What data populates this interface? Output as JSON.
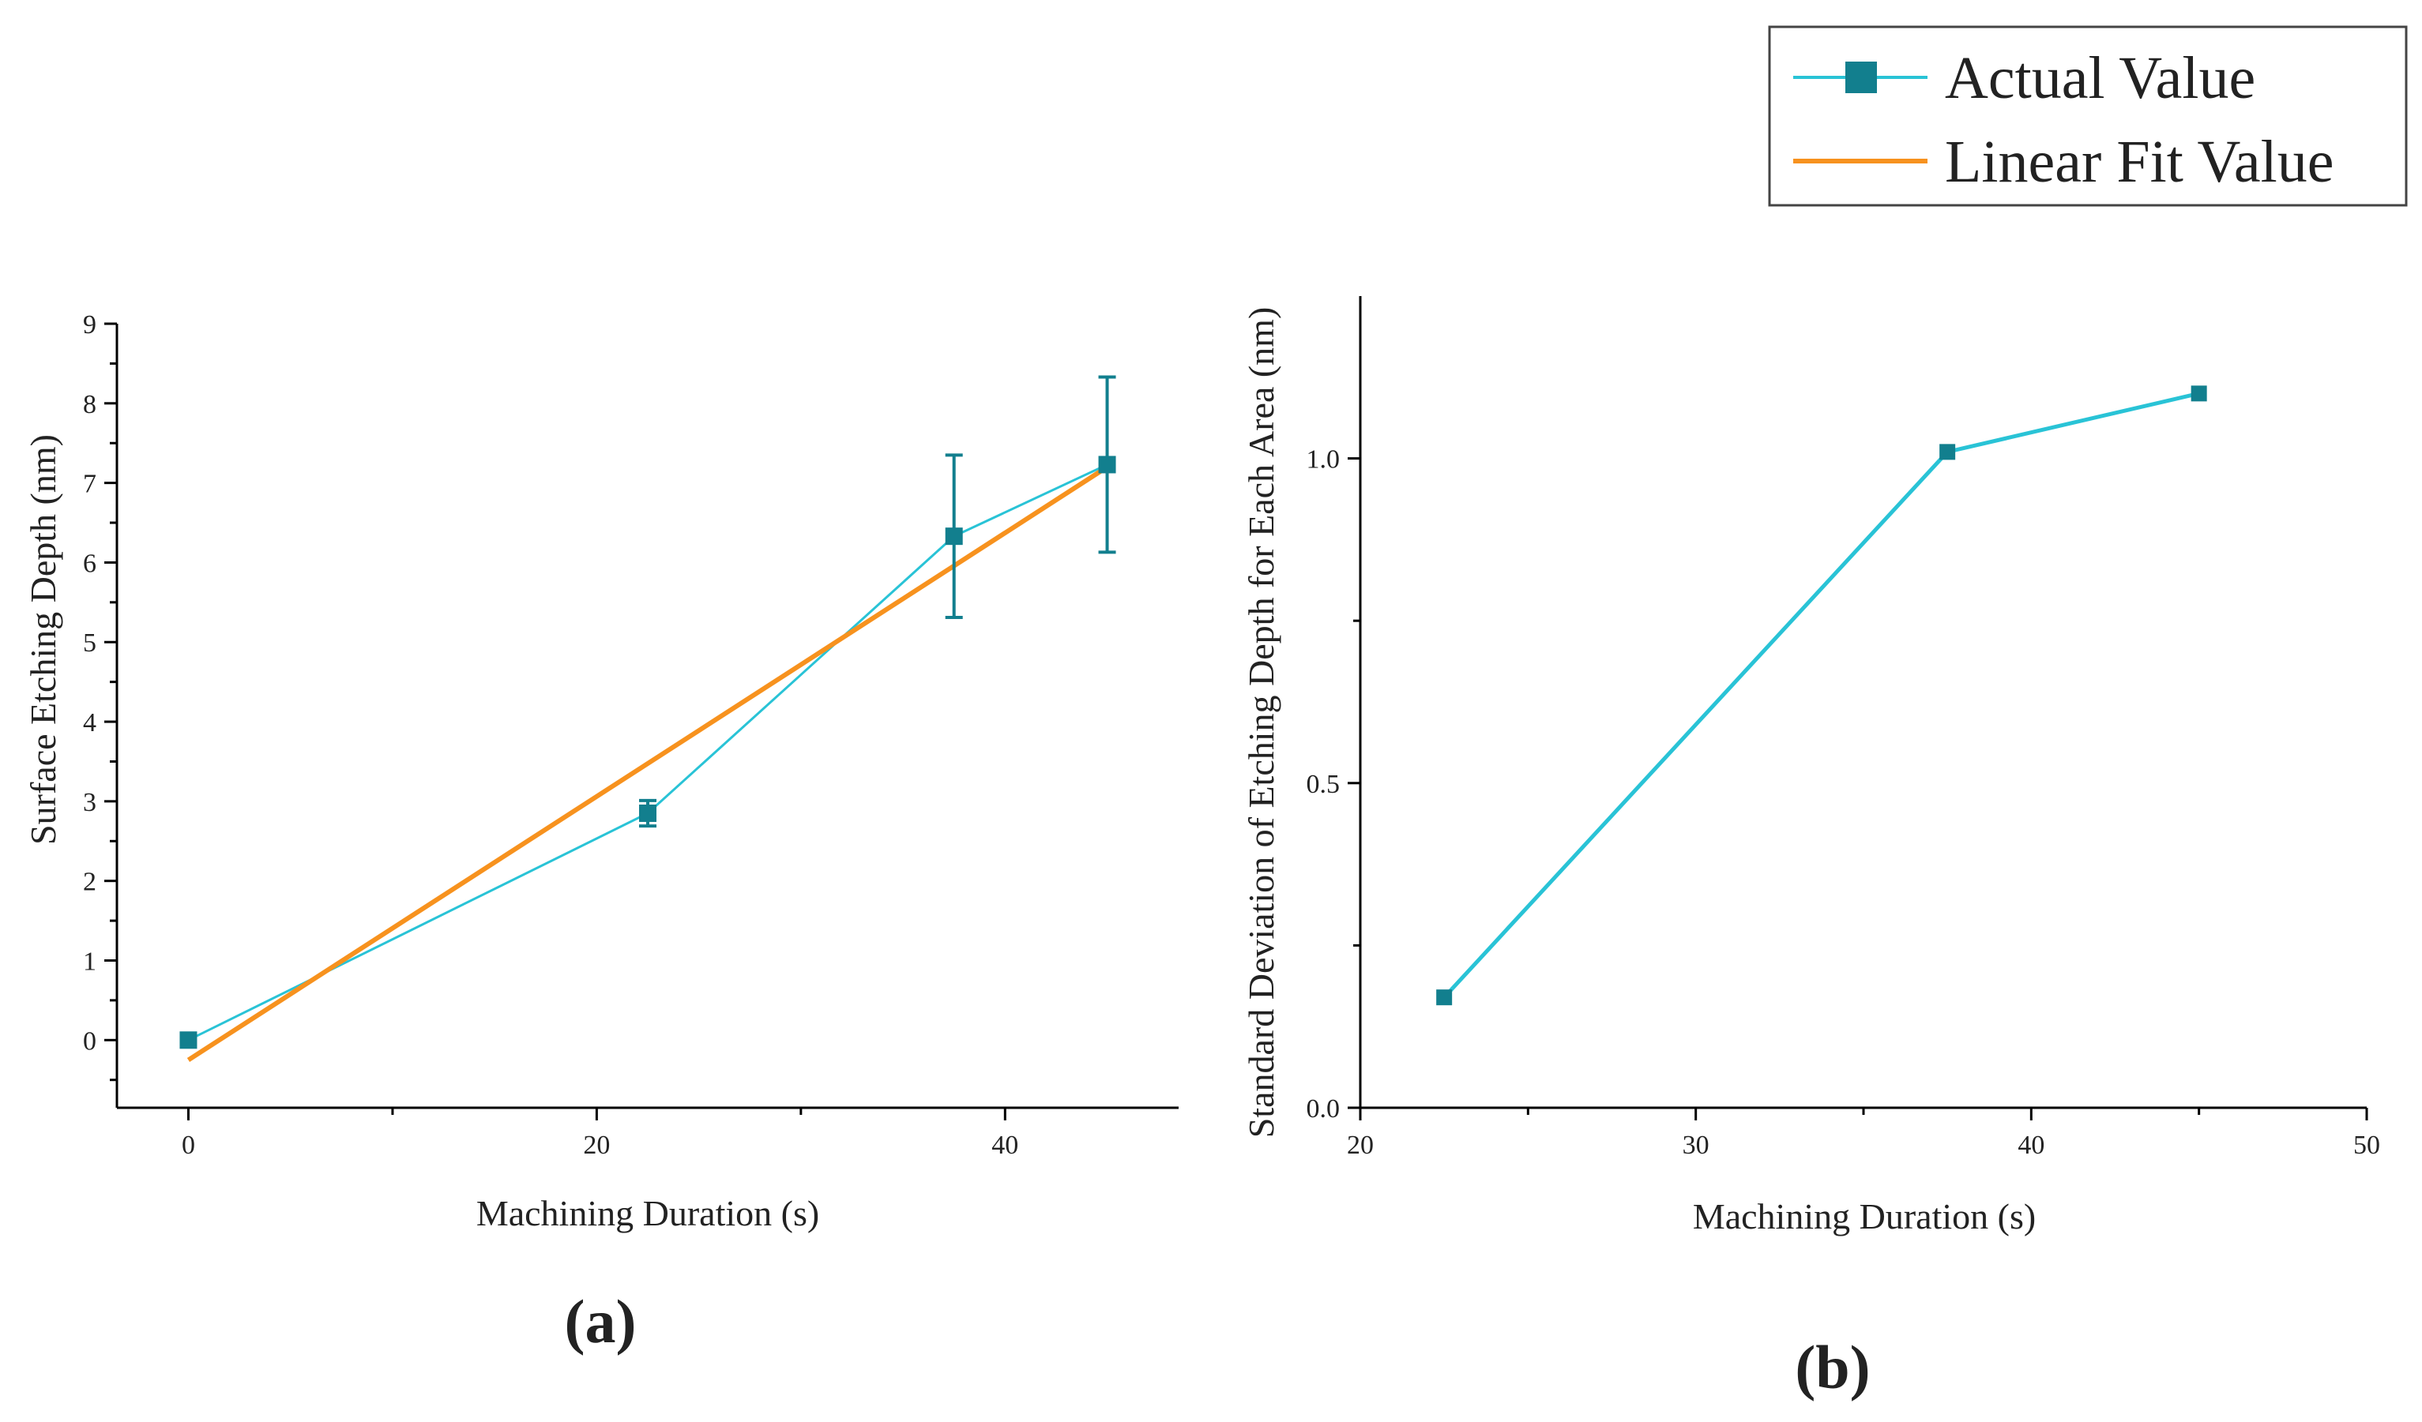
{
  "legend": {
    "actual_label": "Actual Value",
    "fit_label": "Linear Fit Value"
  },
  "colors": {
    "actual": "#29c3d6",
    "marker": "#127f8e",
    "fit": "#f7921e",
    "axis": "#000000"
  },
  "chart_data": [
    {
      "id": "a",
      "type": "line",
      "panel_label": "(a)",
      "xlabel": "Machining Duration (s)",
      "ylabel": "Surface Etching Depth (nm)",
      "xlim": [
        -3.5,
        48.5
      ],
      "ylim": [
        -0.85,
        9
      ],
      "x_major_ticks": [
        0,
        20,
        40
      ],
      "x_minor_ticks": [
        10,
        30
      ],
      "y_major_ticks": [
        0,
        1,
        2,
        3,
        4,
        5,
        6,
        7,
        8,
        9
      ],
      "y_minor_ticks": [
        -0.5,
        0.5,
        1.5,
        2.5,
        3.5,
        4.5,
        5.5,
        6.5,
        7.5,
        8.5
      ],
      "x_tick_labels": [
        "0",
        "20",
        "40"
      ],
      "y_tick_labels": [
        "0",
        "1",
        "2",
        "3",
        "4",
        "5",
        "6",
        "7",
        "8",
        "9"
      ],
      "series": [
        {
          "name": "Actual Value",
          "x": [
            0,
            22.5,
            37.5,
            45
          ],
          "y": [
            0,
            2.85,
            6.33,
            7.23
          ],
          "yerr": [
            0,
            0.16,
            1.02,
            1.1
          ]
        },
        {
          "name": "Linear Fit Value",
          "x": [
            0,
            45
          ],
          "y": [
            -0.25,
            7.2
          ]
        }
      ]
    },
    {
      "id": "b",
      "type": "line",
      "panel_label": "(b)",
      "xlabel": "Machining Duration (s)",
      "ylabel": "Standard Deviation of Etching Depth for Each Area (nm)",
      "xlim": [
        20,
        50
      ],
      "ylim": [
        0,
        1.25
      ],
      "x_major_ticks": [
        20,
        30,
        40,
        50
      ],
      "x_minor_ticks": [
        25,
        35,
        45
      ],
      "y_major_ticks": [
        0,
        0.5,
        1.0
      ],
      "y_minor_ticks": [
        0.25,
        0.75
      ],
      "x_tick_labels": [
        "20",
        "30",
        "40",
        "50"
      ],
      "y_tick_labels": [
        "0.0",
        "0.5",
        "1.0"
      ],
      "series": [
        {
          "name": "Actual Value",
          "x": [
            22.5,
            37.5,
            45
          ],
          "y": [
            0.17,
            1.01,
            1.1
          ]
        }
      ]
    }
  ]
}
